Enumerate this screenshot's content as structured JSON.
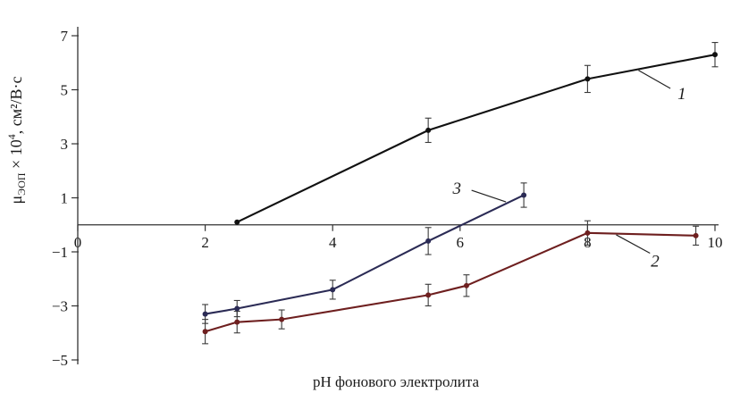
{
  "chart_data": {
    "type": "line",
    "title": "",
    "xlabel": "pH фонового электролита",
    "ylabel_parts": [
      {
        "text": "μ",
        "style": "normal"
      },
      {
        "text": "ЭОП",
        "style": "sub"
      },
      {
        "text": " × 10",
        "style": "normal"
      },
      {
        "text": "4",
        "style": "sup"
      },
      {
        "text": ", см²/В·с",
        "style": "normal"
      }
    ],
    "xlim": [
      0,
      10
    ],
    "ylim": [
      -5,
      7
    ],
    "xticks": [
      0,
      2,
      4,
      6,
      8,
      10
    ],
    "yticks": [
      7,
      5,
      3,
      1,
      -1,
      -3,
      -5
    ],
    "grid": false,
    "legend": "inline-italic-labels",
    "axis_color": "#333333",
    "error_bar_color": "#3a3a3a",
    "series": [
      {
        "name": "curve-1",
        "label": "1",
        "color": "#111111",
        "x": [
          2.5,
          5.5,
          8,
          10
        ],
        "y": [
          0.1,
          3.5,
          5.4,
          6.3
        ],
        "yerr": [
          0,
          0.45,
          0.5,
          0.45
        ],
        "label_pos": [
          9.48,
          4.85
        ],
        "leader": [
          [
            8.8,
            5.72
          ],
          [
            9.3,
            5.05
          ]
        ]
      },
      {
        "name": "curve-2",
        "label": "2",
        "color": "#6e1f1f",
        "x": [
          2,
          2.5,
          3.2,
          5.5,
          6.1,
          8,
          9.7
        ],
        "y": [
          -3.95,
          -3.6,
          -3.5,
          -2.6,
          -2.25,
          -0.3,
          -0.4
        ],
        "yerr": [
          0.45,
          0.4,
          0.35,
          0.4,
          0.4,
          0.45,
          0.35
        ],
        "label_pos": [
          9.06,
          -1.35
        ],
        "leader": [
          [
            8.45,
            -0.37
          ],
          [
            8.98,
            -1.05
          ]
        ]
      },
      {
        "name": "curve-3",
        "label": "3",
        "color": "#2b2b55",
        "x": [
          2,
          2.5,
          4,
          5.5,
          7
        ],
        "y": [
          -3.3,
          -3.1,
          -2.4,
          -0.6,
          1.1
        ],
        "yerr": [
          0.35,
          0.3,
          0.35,
          0.5,
          0.45
        ],
        "label_pos": [
          5.95,
          1.35
        ],
        "leader": [
          [
            6.18,
            1.28
          ],
          [
            6.72,
            0.85
          ]
        ]
      }
    ]
  }
}
